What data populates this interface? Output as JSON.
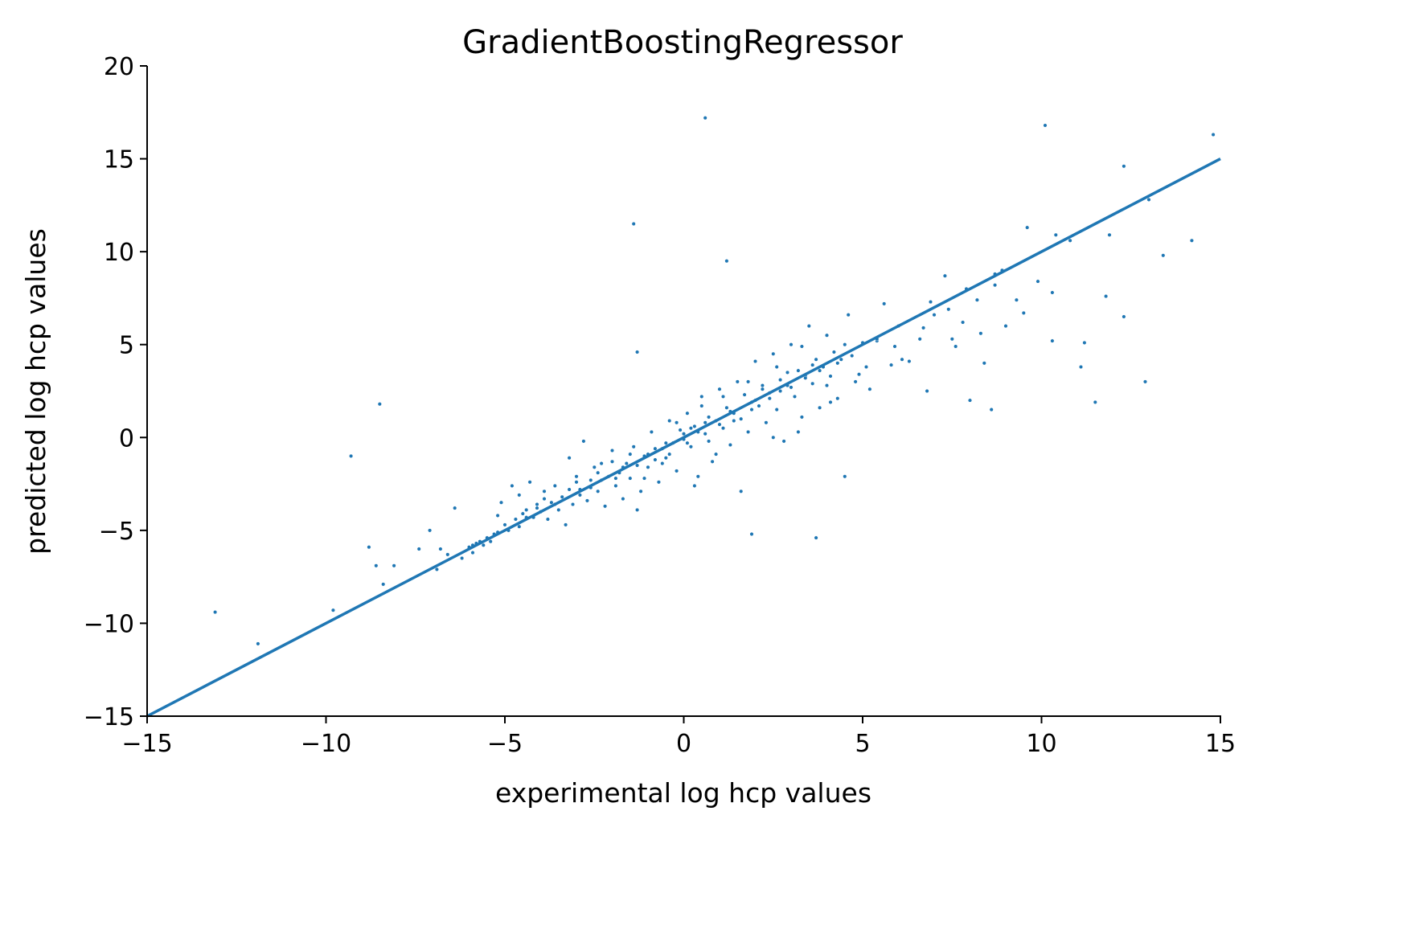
{
  "chart_data": {
    "type": "scatter",
    "title": "GradientBoostingRegressor",
    "xlabel": "experimental log hcp values",
    "ylabel": "predicted log hcp values",
    "xlim": [
      -15,
      15
    ],
    "ylim": [
      -15,
      20
    ],
    "grid": false,
    "colors": {
      "points": "#1f77b4",
      "line": "#1f77b4",
      "axis": "#000000"
    },
    "x_ticks": [
      {
        "value": -15,
        "label": "−15"
      },
      {
        "value": -10,
        "label": "−10"
      },
      {
        "value": -5,
        "label": "−5"
      },
      {
        "value": 0,
        "label": "0"
      },
      {
        "value": 5,
        "label": "5"
      },
      {
        "value": 10,
        "label": "10"
      },
      {
        "value": 15,
        "label": "15"
      }
    ],
    "y_ticks": [
      {
        "value": -15,
        "label": "−15"
      },
      {
        "value": -10,
        "label": "−10"
      },
      {
        "value": -5,
        "label": "−5"
      },
      {
        "value": 0,
        "label": "0"
      },
      {
        "value": 5,
        "label": "5"
      },
      {
        "value": 10,
        "label": "10"
      },
      {
        "value": 15,
        "label": "15"
      },
      {
        "value": 20,
        "label": "20"
      }
    ],
    "reference_line": {
      "x": [
        -15,
        15
      ],
      "y": [
        -15,
        15
      ]
    },
    "points": [
      [
        -13.1,
        -9.4
      ],
      [
        -11.9,
        -11.1
      ],
      [
        -9.8,
        -9.3
      ],
      [
        -9.3,
        -1.0
      ],
      [
        -8.8,
        -5.9
      ],
      [
        -8.6,
        -6.9
      ],
      [
        -8.5,
        1.8
      ],
      [
        -8.4,
        -7.9
      ],
      [
        -8.1,
        -6.9
      ],
      [
        -7.4,
        -6.0
      ],
      [
        -7.1,
        -5.0
      ],
      [
        -6.9,
        -7.1
      ],
      [
        -6.8,
        -6.0
      ],
      [
        -6.6,
        -6.3
      ],
      [
        -6.4,
        -3.8
      ],
      [
        -6.2,
        -6.5
      ],
      [
        -6.0,
        -5.9
      ],
      [
        -5.9,
        -6.2
      ],
      [
        -5.8,
        -5.7
      ],
      [
        -5.7,
        -5.6
      ],
      [
        -5.6,
        -5.8
      ],
      [
        -5.5,
        -5.4
      ],
      [
        -5.4,
        -5.6
      ],
      [
        -5.3,
        -5.2
      ],
      [
        -5.2,
        -4.2
      ],
      [
        -5.1,
        -3.5
      ],
      [
        -5.0,
        -4.7
      ],
      [
        -4.9,
        -5.0
      ],
      [
        -4.8,
        -2.6
      ],
      [
        -4.7,
        -4.4
      ],
      [
        -4.6,
        -4.8
      ],
      [
        -4.5,
        -4.1
      ],
      [
        -4.4,
        -3.9
      ],
      [
        -4.3,
        -2.4
      ],
      [
        -4.2,
        -4.3
      ],
      [
        -4.1,
        -3.6
      ],
      [
        -4.0,
        -4.0
      ],
      [
        -3.9,
        -3.3
      ],
      [
        -3.8,
        -4.4
      ],
      [
        -3.7,
        -3.5
      ],
      [
        -3.6,
        -2.6
      ],
      [
        -3.5,
        -3.9
      ],
      [
        -3.4,
        -3.2
      ],
      [
        -3.3,
        -4.7
      ],
      [
        -3.2,
        -2.8
      ],
      [
        -3.1,
        -3.6
      ],
      [
        -3.0,
        -2.4
      ],
      [
        -2.9,
        -3.1
      ],
      [
        -2.8,
        -0.2
      ],
      [
        -2.7,
        -3.4
      ],
      [
        -2.6,
        -2.7
      ],
      [
        -2.5,
        -1.6
      ],
      [
        -2.4,
        -2.9
      ],
      [
        -2.3,
        -2.3
      ],
      [
        -2.2,
        -3.7
      ],
      [
        -2.1,
        -2.1
      ],
      [
        -2.0,
        -1.3
      ],
      [
        -1.9,
        -2.6
      ],
      [
        -1.8,
        -1.9
      ],
      [
        -1.7,
        -3.3
      ],
      [
        -1.6,
        -1.4
      ],
      [
        -1.5,
        -2.2
      ],
      [
        -1.4,
        -0.5
      ],
      [
        -1.3,
        -1.5
      ],
      [
        -1.2,
        -2.9
      ],
      [
        -1.1,
        -1.0
      ],
      [
        -1.0,
        -1.6
      ],
      [
        -0.9,
        0.3
      ],
      [
        -0.8,
        -1.2
      ],
      [
        -0.7,
        -2.4
      ],
      [
        -0.6,
        -0.6
      ],
      [
        -0.5,
        -1.1
      ],
      [
        -0.4,
        0.9
      ],
      [
        -0.3,
        -0.3
      ],
      [
        -0.2,
        -1.8
      ],
      [
        -0.1,
        0.4
      ],
      [
        0.0,
        -0.1
      ],
      [
        0.1,
        1.3
      ],
      [
        0.2,
        -0.5
      ],
      [
        0.3,
        0.6
      ],
      [
        0.4,
        -2.1
      ],
      [
        0.5,
        2.2
      ],
      [
        0.6,
        0.2
      ],
      [
        0.7,
        1.1
      ],
      [
        0.8,
        -1.3
      ],
      [
        0.9,
        0.9
      ],
      [
        1.0,
        2.6
      ],
      [
        1.1,
        0.5
      ],
      [
        1.2,
        1.6
      ],
      [
        1.3,
        -0.4
      ],
      [
        1.4,
        1.3
      ],
      [
        1.5,
        3.0
      ],
      [
        1.6,
        1.0
      ],
      [
        1.7,
        2.3
      ],
      [
        1.8,
        0.3
      ],
      [
        1.9,
        1.9
      ],
      [
        2.0,
        4.1
      ],
      [
        2.1,
        1.7
      ],
      [
        2.2,
        2.8
      ],
      [
        2.3,
        0.8
      ],
      [
        2.4,
        2.4
      ],
      [
        2.5,
        4.5
      ],
      [
        2.6,
        1.5
      ],
      [
        2.7,
        3.1
      ],
      [
        2.8,
        -0.2
      ],
      [
        2.9,
        2.8
      ],
      [
        3.0,
        5.0
      ],
      [
        3.1,
        2.2
      ],
      [
        3.2,
        3.6
      ],
      [
        3.3,
        1.1
      ],
      [
        3.4,
        3.3
      ],
      [
        3.5,
        6.0
      ],
      [
        3.6,
        2.9
      ],
      [
        3.7,
        4.2
      ],
      [
        3.8,
        1.6
      ],
      [
        3.9,
        3.8
      ],
      [
        4.0,
        5.5
      ],
      [
        4.1,
        3.3
      ],
      [
        4.2,
        4.6
      ],
      [
        4.3,
        2.1
      ],
      [
        4.4,
        4.2
      ],
      [
        4.6,
        6.6
      ],
      [
        4.8,
        3.0
      ],
      [
        5.0,
        5.1
      ],
      [
        5.2,
        2.6
      ],
      [
        5.4,
        5.2
      ],
      [
        5.6,
        7.2
      ],
      [
        5.8,
        3.9
      ],
      [
        6.0,
        6.0
      ],
      [
        6.3,
        4.1
      ],
      [
        6.6,
        5.3
      ],
      [
        6.8,
        2.5
      ],
      [
        7.0,
        6.6
      ],
      [
        7.3,
        8.7
      ],
      [
        7.5,
        5.3
      ],
      [
        7.8,
        6.2
      ],
      [
        8.0,
        2.0
      ],
      [
        8.2,
        7.4
      ],
      [
        8.4,
        4.0
      ],
      [
        8.7,
        8.8
      ],
      [
        9.0,
        6.0
      ],
      [
        9.3,
        7.4
      ],
      [
        9.6,
        11.3
      ],
      [
        9.9,
        8.4
      ],
      [
        10.3,
        7.8
      ],
      [
        10.8,
        10.6
      ],
      [
        11.2,
        5.1
      ],
      [
        11.8,
        7.6
      ],
      [
        12.3,
        14.6
      ],
      [
        12.9,
        3.0
      ],
      [
        13.4,
        9.8
      ],
      [
        14.2,
        10.6
      ],
      [
        14.8,
        16.3
      ],
      [
        0.6,
        17.2
      ],
      [
        -1.4,
        11.5
      ],
      [
        1.2,
        9.5
      ],
      [
        10.1,
        16.8
      ],
      [
        -1.3,
        -3.9
      ],
      [
        -1.3,
        4.6
      ],
      [
        1.9,
        -5.2
      ],
      [
        3.7,
        -5.4
      ],
      [
        4.5,
        -2.1
      ],
      [
        11.5,
        1.9
      ],
      [
        13.0,
        12.8
      ],
      [
        11.9,
        10.9
      ],
      [
        10.4,
        10.9
      ],
      [
        8.7,
        8.2
      ],
      [
        7.6,
        4.9
      ],
      [
        9.5,
        6.7
      ],
      [
        8.6,
        1.5
      ],
      [
        11.1,
        3.8
      ],
      [
        12.3,
        6.5
      ],
      [
        10.3,
        5.2
      ],
      [
        0.3,
        -2.6
      ],
      [
        -0.6,
        -1.4
      ],
      [
        -2.0,
        -0.7
      ],
      [
        -3.2,
        -1.1
      ],
      [
        -4.6,
        -3.1
      ],
      [
        -2.4,
        -1.9
      ],
      [
        -1.1,
        -2.2
      ],
      [
        0.9,
        -0.9
      ],
      [
        1.6,
        -2.9
      ],
      [
        2.5,
        0.0
      ],
      [
        3.2,
        0.3
      ],
      [
        4.1,
        1.9
      ],
      [
        5.1,
        3.8
      ],
      [
        6.1,
        4.2
      ],
      [
        -0.2,
        0.8
      ],
      [
        -0.4,
        -0.9
      ],
      [
        0.2,
        0.5
      ],
      [
        0.7,
        -0.2
      ],
      [
        1.3,
        1.4
      ],
      [
        2.0,
        2.0
      ],
      [
        2.7,
        2.5
      ],
      [
        3.4,
        3.2
      ],
      [
        4.3,
        4.0
      ],
      [
        5.4,
        5.3
      ],
      [
        -1.7,
        -1.6
      ],
      [
        -2.9,
        -2.8
      ],
      [
        -3.6,
        -3.6
      ],
      [
        -4.4,
        -4.3
      ],
      [
        -5.2,
        -5.1
      ],
      [
        -5.9,
        -5.8
      ],
      [
        -0.8,
        -0.6
      ],
      [
        0.1,
        -0.3
      ],
      [
        0.4,
        0.3
      ],
      [
        1.0,
        0.7
      ],
      [
        1.9,
        1.5
      ],
      [
        2.4,
        2.1
      ],
      [
        3.0,
        2.7
      ],
      [
        3.8,
        3.6
      ],
      [
        4.7,
        4.4
      ],
      [
        -1.9,
        -2.2
      ],
      [
        -2.6,
        -2.3
      ],
      [
        -3.4,
        -3.2
      ],
      [
        -4.1,
        -3.8
      ],
      [
        -1.0,
        -0.9
      ],
      [
        -0.5,
        -0.3
      ],
      [
        0.0,
        0.2
      ],
      [
        0.6,
        0.8
      ],
      [
        1.4,
        0.9
      ],
      [
        2.2,
        2.6
      ],
      [
        2.9,
        3.5
      ],
      [
        3.6,
        3.9
      ],
      [
        4.5,
        5.0
      ],
      [
        6.9,
        7.3
      ],
      [
        7.9,
        8.0
      ],
      [
        8.9,
        9.0
      ],
      [
        -1.5,
        -0.9
      ],
      [
        -2.3,
        -1.4
      ],
      [
        -3.0,
        -2.1
      ],
      [
        -3.9,
        -2.9
      ],
      [
        0.5,
        1.7
      ],
      [
        1.1,
        2.2
      ],
      [
        1.8,
        3.0
      ],
      [
        2.6,
        3.8
      ],
      [
        3.3,
        4.9
      ],
      [
        4.0,
        2.8
      ],
      [
        4.9,
        3.4
      ],
      [
        5.9,
        4.9
      ],
      [
        6.7,
        5.9
      ],
      [
        7.4,
        6.9
      ],
      [
        8.3,
        5.6
      ]
    ]
  }
}
